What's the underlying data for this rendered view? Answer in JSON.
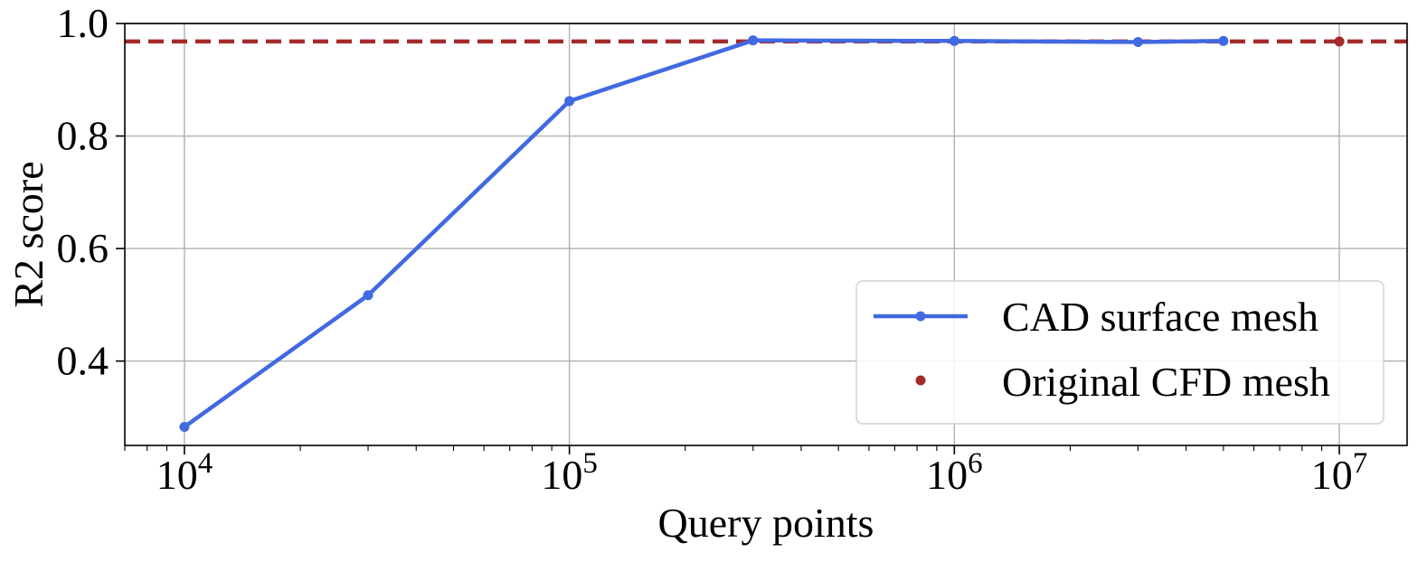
{
  "chart_data": {
    "type": "line",
    "xlabel": "Query points",
    "ylabel": "R2 score",
    "xscale": "log",
    "xlim": [
      7000,
      15000000
    ],
    "ylim": [
      0.25,
      1.0
    ],
    "x_ticks": [
      {
        "value": 10000,
        "base": "10",
        "exp": "4"
      },
      {
        "value": 100000,
        "base": "10",
        "exp": "5"
      },
      {
        "value": 1000000,
        "base": "10",
        "exp": "6"
      },
      {
        "value": 10000000,
        "base": "10",
        "exp": "7"
      }
    ],
    "y_ticks": [
      {
        "value": 0.4,
        "label": "0.4"
      },
      {
        "value": 0.6,
        "label": "0.6"
      },
      {
        "value": 0.8,
        "label": "0.8"
      },
      {
        "value": 1.0,
        "label": "1.0"
      }
    ],
    "grid": true,
    "legend_position": "lower-right",
    "series": [
      {
        "name": "CAD surface mesh",
        "color": "#4169e1",
        "style": "solid",
        "marker": "circle",
        "x": [
          10000,
          30000,
          100000,
          300000,
          1000000,
          3000000,
          5000000
        ],
        "y": [
          0.283,
          0.517,
          0.862,
          0.97,
          0.969,
          0.967,
          0.969
        ]
      },
      {
        "name": "Original CFD mesh",
        "color": "#a52a2a",
        "style": "marker-only",
        "marker": "circle",
        "x": [
          10000000
        ],
        "y": [
          0.968
        ]
      }
    ],
    "reference_line": {
      "y": 0.968,
      "color": "#a52a2a",
      "style": "dashed"
    }
  }
}
